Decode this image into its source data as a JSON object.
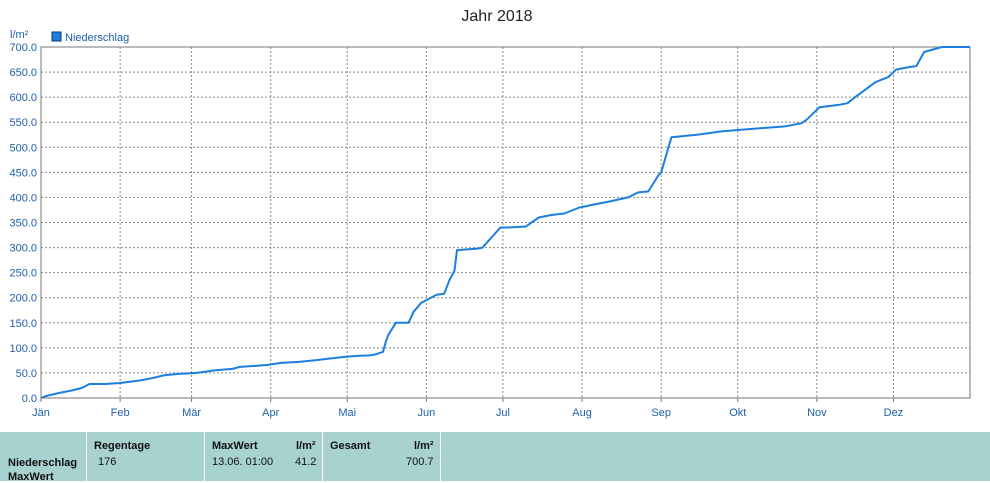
{
  "chart_data": {
    "type": "line",
    "title": "Jahr 2018",
    "ylabel": "l/m²",
    "ylim": [
      0,
      700
    ],
    "yticks": [
      "0.0",
      "50.0",
      "100.0",
      "150.0",
      "200.0",
      "250.0",
      "300.0",
      "350.0",
      "400.0",
      "450.0",
      "500.0",
      "550.0",
      "600.0",
      "650.0",
      "700.0"
    ],
    "xticks": [
      "Jän",
      "Feb",
      "Mär",
      "Apr",
      "Mai",
      "Jun",
      "Jul",
      "Aug",
      "Sep",
      "Okt",
      "Nov",
      "Dez"
    ],
    "grid": true,
    "legend_position": "top-left",
    "series": [
      {
        "name": "Niederschlag",
        "color": "#1c7fe0",
        "x": [
          "01.01.",
          "03.01.",
          "08.01.",
          "13.01.",
          "17.01.",
          "20.01.",
          "26.01.",
          "01.02.",
          "04.02.",
          "09.02.",
          "14.02.",
          "18.02.",
          "24.02.",
          "03.03.",
          "10.03.",
          "17.03.",
          "20.03.",
          "26.03.",
          "31.03.",
          "05.04.",
          "12.04.",
          "18.04.",
          "23.04.",
          "30.04.",
          "05.05.",
          "10.05.",
          "12.05.",
          "15.05.",
          "16.05.",
          "17.05.",
          "20.05.",
          "25.05.",
          "27.05.",
          "30.05.",
          "05.06.",
          "08.06.",
          "10.06.",
          "12.06.",
          "13.06.",
          "21.06.",
          "23.06.",
          "30.06.",
          "03.07.",
          "10.07.",
          "15.07.",
          "20.07.",
          "25.07.",
          "31.07.",
          "05.08.",
          "12.08.",
          "19.08.",
          "23.08.",
          "27.08.",
          "31.08.",
          "01.09.",
          "05.09.",
          "15.09.",
          "25.09.",
          "15.10.",
          "20.10.",
          "23.10.",
          "26.10.",
          "28.10.",
          "01.11.",
          "02.11.",
          "10.11.",
          "13.11.",
          "16.11.",
          "20.11.",
          "24.11.",
          "29.11.",
          "02.12.",
          "07.12.",
          "10.12.",
          "13.12.",
          "20.12.",
          "22.12.",
          "25.12.",
          "29.12.",
          "31.12."
        ],
        "y": [
          0,
          4,
          10,
          15,
          20,
          28,
          28,
          30,
          32,
          35,
          40,
          45,
          48,
          50,
          55,
          58,
          62,
          64,
          66,
          70,
          72,
          75,
          78,
          82,
          84,
          85,
          87,
          92,
          110,
          125,
          150,
          150,
          172,
          190,
          206,
          208,
          235,
          254,
          295,
          298,
          300,
          340,
          340,
          342,
          360,
          365,
          368,
          380,
          385,
          392,
          400,
          410,
          412,
          445,
          450,
          520,
          525,
          532,
          540,
          542,
          545,
          548,
          555,
          575,
          580,
          585,
          588,
          600,
          615,
          630,
          640,
          655,
          660,
          662,
          690,
          700,
          700,
          700,
          700,
          700
        ]
      }
    ]
  },
  "stats": {
    "header": {
      "regentage": "Regentage",
      "maxwert": "MaxWert",
      "unit1": "l/m²",
      "gesamt": "Gesamt",
      "unit2": "l/m²"
    },
    "row_labels": [
      "Niederschlag",
      "MaxWert"
    ],
    "regentage_value": "176",
    "maxwert_date": "13.06.  01:00",
    "maxwert_value": "41.2",
    "gesamt_value": "700.7"
  }
}
